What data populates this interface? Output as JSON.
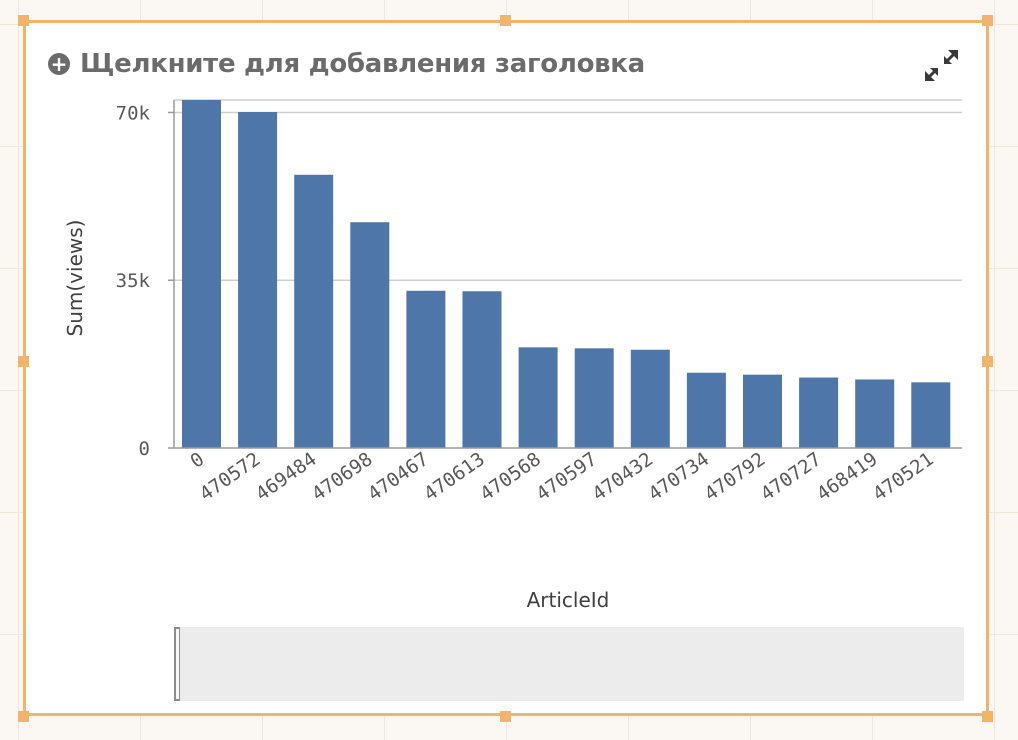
{
  "title": "Щелкните для добавления заголовка",
  "icons": {
    "add": "plus-circle-icon",
    "expand": "expand-icon"
  },
  "colors": {
    "bar": "#4e76a8",
    "selection_border": "#f0b56b",
    "gridline": "#cfcfcf",
    "title_text": "#6b6b6b"
  },
  "chart_data": {
    "type": "bar",
    "xlabel": "ArticleId",
    "ylabel": "Sum(views)",
    "ylim": [
      0,
      70000
    ],
    "yticks": [
      0,
      35000,
      70000
    ],
    "ytick_labels": [
      "0",
      "35k",
      "70k"
    ],
    "grid": true,
    "categories": [
      "0",
      "470572",
      "469484",
      "470698",
      "470467",
      "470613",
      "470568",
      "470597",
      "470432",
      "470734",
      "470792",
      "470727",
      "468419",
      "470521"
    ],
    "values": [
      72600,
      70100,
      57000,
      47100,
      32800,
      32700,
      21000,
      20800,
      20500,
      15700,
      15300,
      14700,
      14300,
      13700
    ]
  }
}
